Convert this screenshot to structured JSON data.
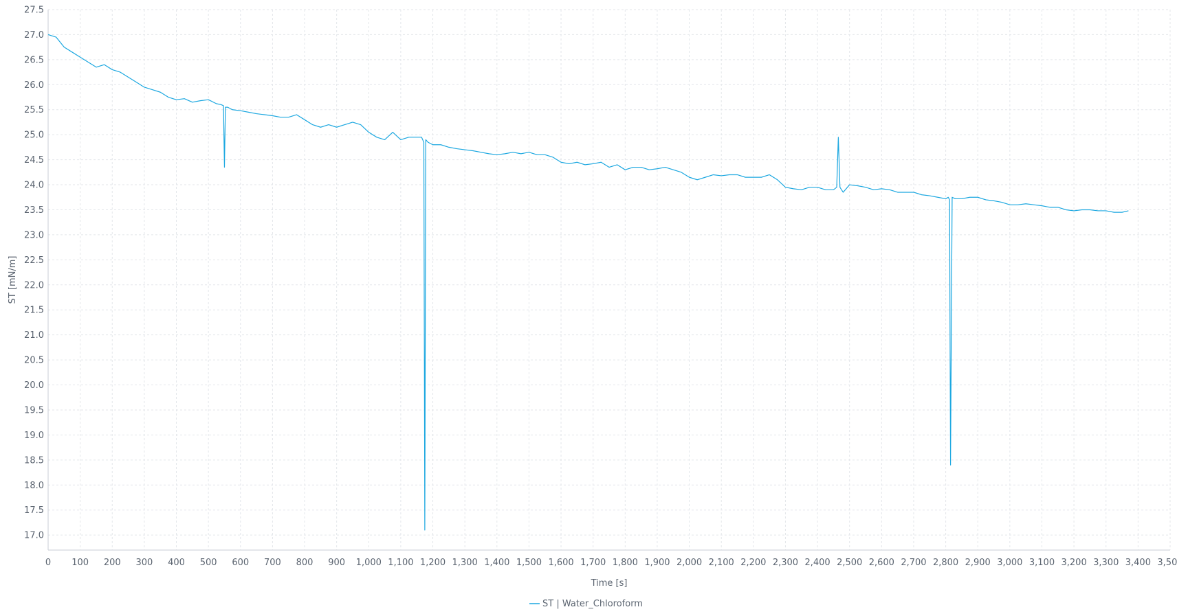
{
  "chart_data": {
    "type": "line",
    "xlabel": "Time [s]",
    "ylabel": "ST [mN/m]",
    "xlim": [
      0,
      3500
    ],
    "ylim": [
      16.7,
      27.5
    ],
    "x_ticks": [
      0,
      100,
      200,
      300,
      400,
      500,
      600,
      700,
      800,
      900,
      1000,
      1100,
      1200,
      1300,
      1400,
      1500,
      1600,
      1700,
      1800,
      1900,
      2000,
      2100,
      2200,
      2300,
      2400,
      2500,
      2600,
      2700,
      2800,
      2900,
      3000,
      3100,
      3200,
      3300,
      3400,
      3500
    ],
    "x_tick_labels": [
      "0",
      "100",
      "200",
      "300",
      "400",
      "500",
      "600",
      "700",
      "800",
      "900",
      "1,000",
      "1,100",
      "1,200",
      "1,300",
      "1,400",
      "1,500",
      "1,600",
      "1,700",
      "1,800",
      "1,900",
      "2,000",
      "2,100",
      "2,200",
      "2,300",
      "2,400",
      "2,500",
      "2,600",
      "2,700",
      "2,800",
      "2,900",
      "3,000",
      "3,100",
      "3,200",
      "3,300",
      "3,400",
      "3,500"
    ],
    "y_ticks": [
      17.0,
      17.5,
      18.0,
      18.5,
      19.0,
      19.5,
      20.0,
      20.5,
      21.0,
      21.5,
      22.0,
      22.5,
      23.0,
      23.5,
      24.0,
      24.5,
      25.0,
      25.5,
      26.0,
      26.5,
      27.0,
      27.5
    ],
    "y_tick_labels": [
      "17.0",
      "17.5",
      "18.0",
      "18.5",
      "19.0",
      "19.5",
      "20.0",
      "20.5",
      "21.0",
      "21.5",
      "22.0",
      "22.5",
      "23.0",
      "23.5",
      "24.0",
      "24.5",
      "25.0",
      "25.5",
      "26.0",
      "26.5",
      "27.0",
      "27.5"
    ],
    "grid": true,
    "legend_position": "bottom-center",
    "series": [
      {
        "name": "ST | Water_Chloroform",
        "color": "#1ba7e0",
        "x": [
          0,
          25,
          50,
          75,
          100,
          125,
          150,
          175,
          200,
          225,
          250,
          275,
          300,
          325,
          350,
          375,
          400,
          425,
          450,
          475,
          500,
          525,
          540,
          547,
          550,
          553,
          560,
          575,
          600,
          625,
          650,
          675,
          700,
          725,
          750,
          775,
          800,
          825,
          850,
          875,
          900,
          925,
          950,
          975,
          1000,
          1025,
          1050,
          1075,
          1100,
          1125,
          1150,
          1165,
          1172,
          1175,
          1178,
          1185,
          1200,
          1225,
          1250,
          1275,
          1300,
          1325,
          1350,
          1375,
          1400,
          1425,
          1450,
          1475,
          1500,
          1525,
          1550,
          1575,
          1600,
          1625,
          1650,
          1675,
          1700,
          1725,
          1750,
          1775,
          1800,
          1825,
          1850,
          1875,
          1900,
          1925,
          1950,
          1975,
          2000,
          2025,
          2050,
          2075,
          2100,
          2125,
          2150,
          2175,
          2200,
          2225,
          2250,
          2275,
          2300,
          2325,
          2350,
          2375,
          2400,
          2425,
          2450,
          2460,
          2465,
          2470,
          2480,
          2500,
          2525,
          2550,
          2575,
          2600,
          2625,
          2650,
          2675,
          2700,
          2725,
          2750,
          2775,
          2800,
          2808,
          2812,
          2815,
          2820,
          2830,
          2850,
          2875,
          2900,
          2925,
          2950,
          2975,
          3000,
          3025,
          3050,
          3075,
          3100,
          3125,
          3150,
          3175,
          3200,
          3225,
          3250,
          3275,
          3300,
          3325,
          3350,
          3370
        ],
        "y": [
          27.0,
          26.95,
          26.75,
          26.65,
          26.55,
          26.45,
          26.35,
          26.4,
          26.3,
          26.25,
          26.15,
          26.05,
          25.95,
          25.9,
          25.85,
          25.75,
          25.7,
          25.72,
          25.65,
          25.68,
          25.7,
          25.62,
          25.6,
          25.58,
          24.35,
          25.55,
          25.55,
          25.5,
          25.48,
          25.45,
          25.42,
          25.4,
          25.38,
          25.35,
          25.35,
          25.4,
          25.3,
          25.2,
          25.15,
          25.2,
          25.15,
          25.2,
          25.25,
          25.2,
          25.05,
          24.95,
          24.9,
          25.05,
          24.9,
          24.95,
          24.95,
          24.95,
          24.85,
          17.1,
          24.9,
          24.85,
          24.8,
          24.8,
          24.75,
          24.72,
          24.7,
          24.68,
          24.65,
          24.62,
          24.6,
          24.62,
          24.65,
          24.62,
          24.65,
          24.6,
          24.6,
          24.55,
          24.45,
          24.42,
          24.45,
          24.4,
          24.42,
          24.45,
          24.35,
          24.4,
          24.3,
          24.35,
          24.35,
          24.3,
          24.32,
          24.35,
          24.3,
          24.25,
          24.15,
          24.1,
          24.15,
          24.2,
          24.18,
          24.2,
          24.2,
          24.15,
          24.15,
          24.15,
          24.2,
          24.1,
          23.95,
          23.92,
          23.9,
          23.95,
          23.95,
          23.9,
          23.9,
          23.95,
          24.95,
          23.95,
          23.85,
          24.0,
          23.98,
          23.95,
          23.9,
          23.92,
          23.9,
          23.85,
          23.85,
          23.85,
          23.8,
          23.78,
          23.75,
          23.72,
          23.75,
          23.7,
          18.4,
          23.75,
          23.72,
          23.72,
          23.75,
          23.75,
          23.7,
          23.68,
          23.65,
          23.6,
          23.6,
          23.62,
          23.6,
          23.58,
          23.55,
          23.55,
          23.5,
          23.48,
          23.5,
          23.5,
          23.48,
          23.48,
          23.45,
          23.45,
          23.48
        ]
      }
    ]
  }
}
